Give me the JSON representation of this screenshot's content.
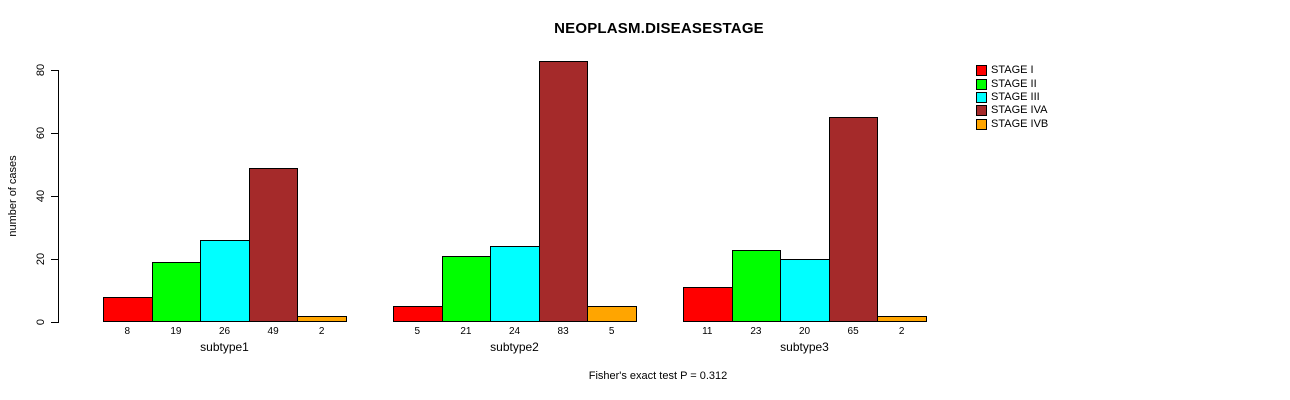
{
  "chart_data": {
    "type": "bar",
    "title": "NEOPLASM.DISEASESTAGE",
    "ylabel": "number of cases",
    "xlabel": "",
    "annotation": "Fisher's exact test P = 0.312",
    "categories": [
      "subtype1",
      "subtype2",
      "subtype3"
    ],
    "series": [
      {
        "name": "STAGE I",
        "color": "#FF0000",
        "values": [
          8,
          5,
          11
        ]
      },
      {
        "name": "STAGE II",
        "color": "#00FF00",
        "values": [
          19,
          21,
          23
        ]
      },
      {
        "name": "STAGE III",
        "color": "#00FFFF",
        "values": [
          26,
          24,
          20
        ]
      },
      {
        "name": "STAGE IVA",
        "color": "#A52A2A",
        "values": [
          49,
          83,
          65
        ]
      },
      {
        "name": "STAGE IVB",
        "color": "#FFA500",
        "values": [
          2,
          5,
          2
        ]
      }
    ],
    "yticks": [
      0,
      20,
      40,
      60,
      80
    ],
    "ylim": [
      0,
      83
    ],
    "bar_value_labels": true,
    "legend_position": "right",
    "grid": false
  }
}
